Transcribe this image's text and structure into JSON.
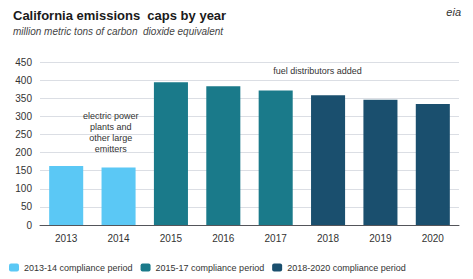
{
  "chart_data": {
    "type": "bar",
    "title": "California emissions  caps by year",
    "subtitle": "million metric tons of carbon  dioxide equivalent",
    "categories": [
      "2013",
      "2014",
      "2015",
      "2016",
      "2017",
      "2018",
      "2019",
      "2020"
    ],
    "series": [
      {
        "name": "2013-14 compliance period",
        "color": "#5bc8f5",
        "values": [
          163,
          159,
          null,
          null,
          null,
          null,
          null,
          null
        ]
      },
      {
        "name": "2015-17 compliance period",
        "color": "#1a7a8a",
        "values": [
          null,
          null,
          394,
          383,
          371,
          null,
          null,
          null
        ]
      },
      {
        "name": "2018-2020 compliance period",
        "color": "#1a4f6e",
        "values": [
          null,
          null,
          null,
          null,
          null,
          358,
          346,
          334
        ]
      }
    ],
    "ylim": [
      0,
      450
    ],
    "yticks": [
      0,
      50,
      100,
      150,
      200,
      250,
      300,
      350,
      400,
      450
    ],
    "grid": true,
    "legend": "lower left",
    "annotations": [
      "electric power\nplants and\nother large\nemitters",
      "fuel distributors added",
      "eia"
    ]
  }
}
